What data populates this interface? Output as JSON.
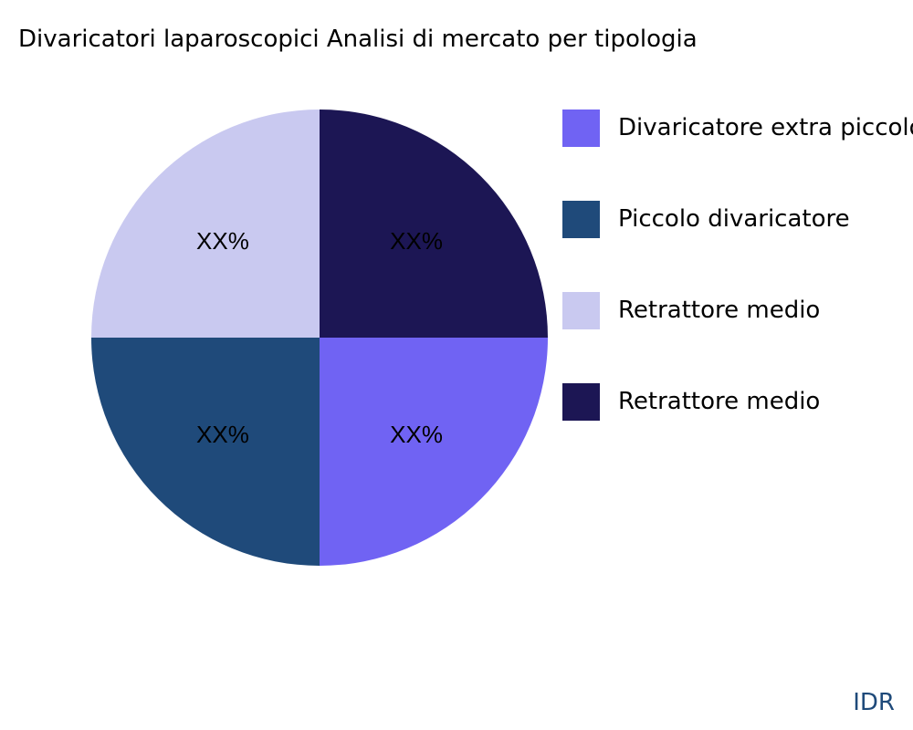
{
  "chart_data": {
    "type": "pie",
    "title": "Divaricatori laparoscopici Analisi di mercato per tipologia",
    "slices": [
      {
        "name": "Divaricatore extra piccolo",
        "value": 25,
        "label": "XX%",
        "color": "#7063f3"
      },
      {
        "name": "Piccolo divaricatore",
        "value": 25,
        "label": "XX%",
        "color": "#1f4a7a"
      },
      {
        "name": "Retrattore medio",
        "value": 25,
        "label": "XX%",
        "color": "#c9c9f0"
      },
      {
        "name": "Retrattore medio",
        "value": 25,
        "label": "XX%",
        "color": "#1c1654"
      }
    ],
    "direction": "clockwise",
    "legend_position": "right"
  },
  "footer": {
    "brand": "IDR"
  }
}
